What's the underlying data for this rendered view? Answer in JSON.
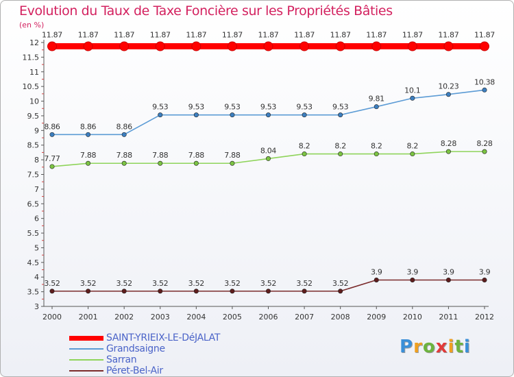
{
  "title": "Evolution du Taux de Taxe Foncière sur les Propriétés Bâties",
  "unit_label": "(en %)",
  "brand": {
    "letters": [
      "P",
      "r",
      "o",
      "x",
      "i",
      "t",
      "i"
    ],
    "colors": [
      "#3a8fd8",
      "#f0a020",
      "#6db33f",
      "#e23a3a",
      "#f0a020",
      "#6db33f",
      "#3a8fd8"
    ]
  },
  "chart_data": {
    "type": "line",
    "title": "Evolution du Taux de Taxe Foncière sur les Propriétés Bâties",
    "ylabel": "(en %)",
    "x": [
      "2000",
      "2001",
      "2002",
      "2003",
      "2004",
      "2005",
      "2006",
      "2007",
      "2008",
      "2009",
      "2010",
      "2011",
      "2012"
    ],
    "ylim": [
      3,
      12
    ],
    "yticks": [
      "3",
      "3.5",
      "4",
      "4.5",
      "5",
      "5.5",
      "6",
      "6.5",
      "7",
      "7.5",
      "8",
      "8.5",
      "9",
      "9.5",
      "10",
      "10.5",
      "11",
      "11.5",
      "12"
    ],
    "legend_position": "bottom-left",
    "series": [
      {
        "name": "SAINT-YRIEIX-LE-DéJALAT",
        "color": "#ff0000",
        "values": [
          11.87,
          11.87,
          11.87,
          11.87,
          11.87,
          11.87,
          11.87,
          11.87,
          11.87,
          11.87,
          11.87,
          11.87,
          11.87
        ],
        "labels": [
          "11.87",
          "11.87",
          "11.87",
          "11.87",
          "11.87",
          "11.87",
          "11.87",
          "11.87",
          "11.87",
          "11.87",
          "11.87",
          "11.87",
          "11.87"
        ]
      },
      {
        "name": "Grandsaigne",
        "color": "#5b9bd5",
        "point_color": "#3d7fc0",
        "values": [
          8.86,
          8.86,
          8.86,
          9.53,
          9.53,
          9.53,
          9.53,
          9.53,
          9.53,
          9.81,
          10.1,
          10.23,
          10.38
        ],
        "labels": [
          "8.86",
          "8.86",
          "8.86",
          "9.53",
          "9.53",
          "9.53",
          "9.53",
          "9.53",
          "9.53",
          "9.81",
          "10.1",
          "10.23",
          "10.38"
        ]
      },
      {
        "name": "Sarran",
        "color": "#8fd45a",
        "point_color": "#7cc443",
        "values": [
          7.77,
          7.88,
          7.88,
          7.88,
          7.88,
          7.88,
          8.04,
          8.2,
          8.2,
          8.2,
          8.2,
          8.28,
          8.28
        ],
        "labels": [
          "7.77",
          "7.88",
          "7.88",
          "7.88",
          "7.88",
          "7.88",
          "8.04",
          "8.2",
          "8.2",
          "8.2",
          "8.2",
          "8.28",
          "8.28"
        ]
      },
      {
        "name": "Péret-Bel-Air",
        "color": "#7a2b2b",
        "point_color": "#5e1d1d",
        "values": [
          3.52,
          3.52,
          3.52,
          3.52,
          3.52,
          3.52,
          3.52,
          3.52,
          3.52,
          3.9,
          3.9,
          3.9,
          3.9
        ],
        "labels": [
          "3.52",
          "3.52",
          "3.52",
          "3.52",
          "3.52",
          "3.52",
          "3.52",
          "3.52",
          "3.52",
          "3.9",
          "3.9",
          "3.9",
          "3.9"
        ]
      }
    ]
  }
}
